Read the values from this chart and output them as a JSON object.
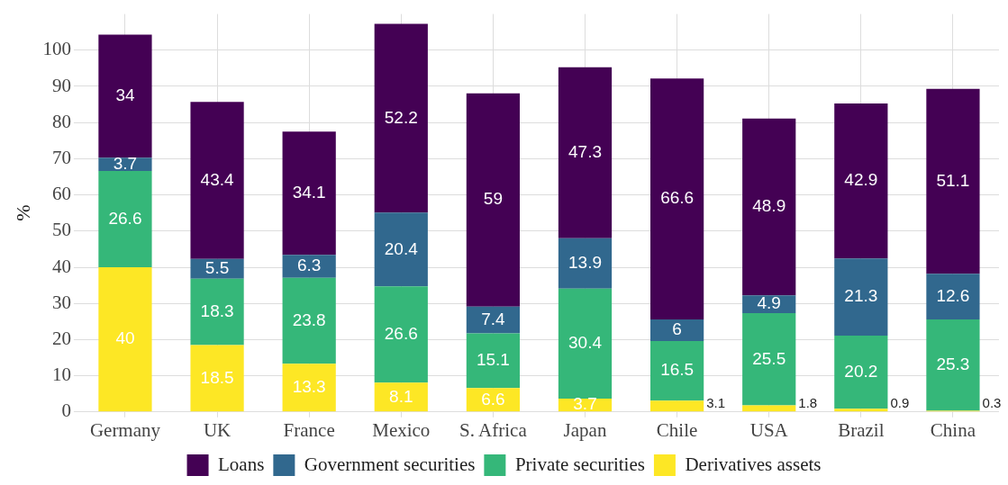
{
  "chart_data": {
    "type": "bar",
    "stacked": true,
    "ylabel": "%",
    "categories": [
      "Germany",
      "UK",
      "France",
      "Mexico",
      "S. Africa",
      "Japan",
      "Chile",
      "USA",
      "Brazil",
      "China"
    ],
    "series": [
      {
        "name": "Derivatives assets",
        "color": "#fde725",
        "values": [
          40,
          18.5,
          13.3,
          8.1,
          6.6,
          3.7,
          3.1,
          1.8,
          0.9,
          0.3
        ]
      },
      {
        "name": "Private securities",
        "color": "#35b779",
        "values": [
          26.6,
          18.3,
          23.8,
          26.6,
          15.1,
          30.4,
          16.5,
          25.5,
          20.2,
          25.3
        ]
      },
      {
        "name": "Government securities",
        "color": "#31688e",
        "values": [
          3.7,
          5.5,
          6.3,
          20.4,
          7.4,
          13.9,
          6,
          4.9,
          21.3,
          12.6
        ]
      },
      {
        "name": "Loans",
        "color": "#440154",
        "values": [
          34,
          43.4,
          34.1,
          52.2,
          59,
          47.3,
          66.6,
          48.9,
          42.9,
          51.1
        ]
      }
    ],
    "ylim": [
      0,
      110
    ],
    "yticks": [
      0,
      10,
      20,
      30,
      40,
      50,
      60,
      70,
      80,
      90,
      100
    ],
    "grid": true,
    "legend": "bottom",
    "data_labels": true
  }
}
